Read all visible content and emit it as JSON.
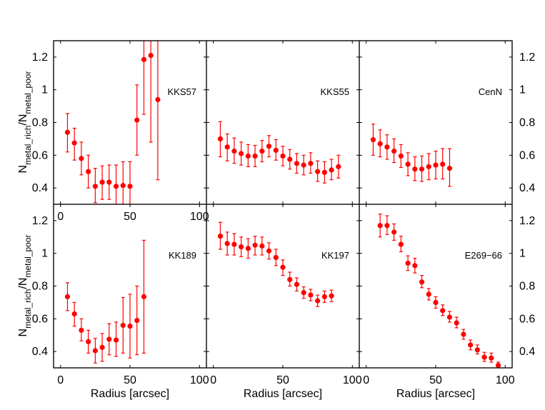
{
  "figure": {
    "colors": {
      "marker": "#ff0000",
      "frame": "#000000",
      "background": "#ffffff"
    },
    "xlabel": "Radius [arcsec]",
    "ylabel_main": "N",
    "ylabel_sub_rich": "metal_rich",
    "ylabel_slash": "/N",
    "ylabel_sub_poor": "metal_poor"
  },
  "chart_data": [
    {
      "type": "scatter",
      "title": "KKS57",
      "row": 0,
      "col": 0,
      "xlim": [
        -5,
        105
      ],
      "ylim": [
        0.3,
        1.3
      ],
      "xticks": [
        0,
        50,
        100
      ],
      "yticks": [
        0.4,
        0.6,
        0.8,
        1.0,
        1.2
      ],
      "xticklabels": [
        "0",
        "50",
        "100"
      ],
      "yticklabels": [
        "0.4",
        "0.6",
        "0.8",
        "1",
        "1.2"
      ],
      "points": [
        {
          "x": 5,
          "y": 0.74,
          "lo": 0.62,
          "hi": 0.855
        },
        {
          "x": 10,
          "y": 0.675,
          "lo": 0.57,
          "hi": 0.765
        },
        {
          "x": 15,
          "y": 0.58,
          "lo": 0.48,
          "hi": 0.68
        },
        {
          "x": 20,
          "y": 0.5,
          "lo": 0.4,
          "hi": 0.6
        },
        {
          "x": 25,
          "y": 0.41,
          "lo": 0.31,
          "hi": 0.52
        },
        {
          "x": 30,
          "y": 0.435,
          "lo": 0.33,
          "hi": 0.535
        },
        {
          "x": 35,
          "y": 0.435,
          "lo": 0.33,
          "hi": 0.54
        },
        {
          "x": 40,
          "y": 0.41,
          "lo": 0.3,
          "hi": 0.54
        },
        {
          "x": 45,
          "y": 0.415,
          "lo": 0.3,
          "hi": 0.56
        },
        {
          "x": 50,
          "y": 0.41,
          "lo": 0.3,
          "hi": 0.56
        },
        {
          "x": 55,
          "y": 0.815,
          "lo": 0.6,
          "hi": 1.03
        },
        {
          "x": 60,
          "y": 1.185,
          "lo": 0.85,
          "hi": 1.3
        },
        {
          "x": 65,
          "y": 1.21,
          "lo": 0.68,
          "hi": 1.3
        },
        {
          "x": 70,
          "y": 0.94,
          "lo": 0.45,
          "hi": 1.3
        }
      ]
    },
    {
      "type": "scatter",
      "title": "KKS55",
      "row": 0,
      "col": 1,
      "xlim": [
        -5,
        105
      ],
      "ylim": [
        0.3,
        1.3
      ],
      "xticks": [
        0,
        50,
        100
      ],
      "yticks": [
        0.4,
        0.6,
        0.8,
        1.0,
        1.2
      ],
      "xticklabels": [],
      "yticklabels": [],
      "points": [
        {
          "x": 5,
          "y": 0.7,
          "lo": 0.59,
          "hi": 0.805
        },
        {
          "x": 10,
          "y": 0.65,
          "lo": 0.565,
          "hi": 0.73
        },
        {
          "x": 15,
          "y": 0.625,
          "lo": 0.55,
          "hi": 0.705
        },
        {
          "x": 20,
          "y": 0.61,
          "lo": 0.54,
          "hi": 0.68
        },
        {
          "x": 25,
          "y": 0.595,
          "lo": 0.53,
          "hi": 0.665
        },
        {
          "x": 30,
          "y": 0.595,
          "lo": 0.53,
          "hi": 0.66
        },
        {
          "x": 35,
          "y": 0.625,
          "lo": 0.56,
          "hi": 0.69
        },
        {
          "x": 40,
          "y": 0.655,
          "lo": 0.59,
          "hi": 0.72
        },
        {
          "x": 45,
          "y": 0.63,
          "lo": 0.57,
          "hi": 0.695
        },
        {
          "x": 50,
          "y": 0.595,
          "lo": 0.535,
          "hi": 0.655
        },
        {
          "x": 55,
          "y": 0.575,
          "lo": 0.515,
          "hi": 0.635
        },
        {
          "x": 60,
          "y": 0.55,
          "lo": 0.49,
          "hi": 0.61
        },
        {
          "x": 65,
          "y": 0.54,
          "lo": 0.48,
          "hi": 0.6
        },
        {
          "x": 70,
          "y": 0.55,
          "lo": 0.49,
          "hi": 0.615
        },
        {
          "x": 75,
          "y": 0.5,
          "lo": 0.44,
          "hi": 0.565
        },
        {
          "x": 80,
          "y": 0.495,
          "lo": 0.43,
          "hi": 0.56
        },
        {
          "x": 85,
          "y": 0.51,
          "lo": 0.45,
          "hi": 0.575
        },
        {
          "x": 90,
          "y": 0.53,
          "lo": 0.46,
          "hi": 0.6
        }
      ]
    },
    {
      "type": "scatter",
      "title": "CenN",
      "row": 0,
      "col": 2,
      "xlim": [
        -5,
        105
      ],
      "ylim": [
        0.3,
        1.3
      ],
      "xticks": [
        0,
        50,
        100
      ],
      "yticks": [
        0.4,
        0.6,
        0.8,
        1.0,
        1.2
      ],
      "xticklabels": [],
      "yticklabels": [
        "0.4",
        "0.6",
        "0.8",
        "1",
        "1.2"
      ],
      "points": [
        {
          "x": 5,
          "y": 0.695,
          "lo": 0.6,
          "hi": 0.79
        },
        {
          "x": 10,
          "y": 0.67,
          "lo": 0.59,
          "hi": 0.755
        },
        {
          "x": 15,
          "y": 0.65,
          "lo": 0.575,
          "hi": 0.725
        },
        {
          "x": 20,
          "y": 0.625,
          "lo": 0.555,
          "hi": 0.7
        },
        {
          "x": 25,
          "y": 0.595,
          "lo": 0.525,
          "hi": 0.665
        },
        {
          "x": 30,
          "y": 0.545,
          "lo": 0.475,
          "hi": 0.615
        },
        {
          "x": 35,
          "y": 0.515,
          "lo": 0.445,
          "hi": 0.59
        },
        {
          "x": 40,
          "y": 0.515,
          "lo": 0.44,
          "hi": 0.595
        },
        {
          "x": 45,
          "y": 0.53,
          "lo": 0.45,
          "hi": 0.61
        },
        {
          "x": 50,
          "y": 0.54,
          "lo": 0.455,
          "hi": 0.625
        },
        {
          "x": 55,
          "y": 0.545,
          "lo": 0.455,
          "hi": 0.64
        },
        {
          "x": 60,
          "y": 0.52,
          "lo": 0.41,
          "hi": 0.64
        }
      ]
    },
    {
      "type": "scatter",
      "title": "KK189",
      "row": 1,
      "col": 0,
      "xlim": [
        -5,
        105
      ],
      "ylim": [
        0.3,
        1.3
      ],
      "xticks": [
        0,
        50,
        100
      ],
      "yticks": [
        0.4,
        0.6,
        0.8,
        1.0,
        1.2
      ],
      "xticklabels": [
        "0",
        "50",
        "100"
      ],
      "yticklabels": [
        "0.4",
        "0.6",
        "0.8",
        "1",
        "1.2"
      ],
      "points": [
        {
          "x": 5,
          "y": 0.735,
          "lo": 0.65,
          "hi": 0.82
        },
        {
          "x": 10,
          "y": 0.63,
          "lo": 0.555,
          "hi": 0.7
        },
        {
          "x": 15,
          "y": 0.53,
          "lo": 0.465,
          "hi": 0.6
        },
        {
          "x": 20,
          "y": 0.46,
          "lo": 0.39,
          "hi": 0.53
        },
        {
          "x": 25,
          "y": 0.405,
          "lo": 0.33,
          "hi": 0.48
        },
        {
          "x": 30,
          "y": 0.425,
          "lo": 0.34,
          "hi": 0.51
        },
        {
          "x": 35,
          "y": 0.475,
          "lo": 0.38,
          "hi": 0.57
        },
        {
          "x": 40,
          "y": 0.47,
          "lo": 0.37,
          "hi": 0.58
        },
        {
          "x": 45,
          "y": 0.56,
          "lo": 0.39,
          "hi": 0.73
        },
        {
          "x": 50,
          "y": 0.555,
          "lo": 0.36,
          "hi": 0.75
        },
        {
          "x": 55,
          "y": 0.59,
          "lo": 0.38,
          "hi": 0.8
        },
        {
          "x": 60,
          "y": 0.735,
          "lo": 0.39,
          "hi": 1.08
        }
      ]
    },
    {
      "type": "scatter",
      "title": "KK197",
      "row": 1,
      "col": 1,
      "xlim": [
        -5,
        105
      ],
      "ylim": [
        0.3,
        1.3
      ],
      "xticks": [
        0,
        50,
        100
      ],
      "yticks": [
        0.4,
        0.6,
        0.8,
        1.0,
        1.2
      ],
      "xticklabels": [
        "0",
        "50",
        "100"
      ],
      "yticklabels": [],
      "points": [
        {
          "x": 5,
          "y": 1.105,
          "lo": 1.025,
          "hi": 1.19
        },
        {
          "x": 10,
          "y": 1.06,
          "lo": 0.99,
          "hi": 1.13
        },
        {
          "x": 15,
          "y": 1.055,
          "lo": 0.99,
          "hi": 1.12
        },
        {
          "x": 20,
          "y": 1.04,
          "lo": 0.98,
          "hi": 1.1
        },
        {
          "x": 25,
          "y": 1.03,
          "lo": 0.97,
          "hi": 1.09
        },
        {
          "x": 30,
          "y": 1.05,
          "lo": 0.99,
          "hi": 1.105
        },
        {
          "x": 35,
          "y": 1.045,
          "lo": 0.99,
          "hi": 1.1
        },
        {
          "x": 40,
          "y": 1.015,
          "lo": 0.965,
          "hi": 1.065
        },
        {
          "x": 45,
          "y": 0.975,
          "lo": 0.925,
          "hi": 1.025
        },
        {
          "x": 50,
          "y": 0.915,
          "lo": 0.865,
          "hi": 0.96
        },
        {
          "x": 55,
          "y": 0.84,
          "lo": 0.8,
          "hi": 0.885
        },
        {
          "x": 60,
          "y": 0.81,
          "lo": 0.77,
          "hi": 0.85
        },
        {
          "x": 65,
          "y": 0.76,
          "lo": 0.725,
          "hi": 0.795
        },
        {
          "x": 70,
          "y": 0.745,
          "lo": 0.71,
          "hi": 0.78
        },
        {
          "x": 75,
          "y": 0.71,
          "lo": 0.675,
          "hi": 0.745
        },
        {
          "x": 80,
          "y": 0.735,
          "lo": 0.7,
          "hi": 0.77
        },
        {
          "x": 85,
          "y": 0.74,
          "lo": 0.705,
          "hi": 0.775
        }
      ]
    },
    {
      "type": "scatter",
      "title": "E269−66",
      "row": 1,
      "col": 2,
      "xlim": [
        -5,
        105
      ],
      "ylim": [
        0.3,
        1.3
      ],
      "xticks": [
        0,
        50,
        100
      ],
      "yticks": [
        0.4,
        0.6,
        0.8,
        1.0,
        1.2
      ],
      "xticklabels": [
        "0",
        "50",
        "100"
      ],
      "yticklabels": [
        "0.4",
        "0.6",
        "0.8",
        "1",
        "1.2"
      ],
      "points": [
        {
          "x": 10,
          "y": 1.17,
          "lo": 1.1,
          "hi": 1.24
        },
        {
          "x": 15,
          "y": 1.17,
          "lo": 1.115,
          "hi": 1.23
        },
        {
          "x": 20,
          "y": 1.13,
          "lo": 1.08,
          "hi": 1.18
        },
        {
          "x": 25,
          "y": 1.055,
          "lo": 1.01,
          "hi": 1.105
        },
        {
          "x": 30,
          "y": 0.94,
          "lo": 0.895,
          "hi": 0.985
        },
        {
          "x": 35,
          "y": 0.925,
          "lo": 0.88,
          "hi": 0.97
        },
        {
          "x": 40,
          "y": 0.825,
          "lo": 0.79,
          "hi": 0.865
        },
        {
          "x": 45,
          "y": 0.75,
          "lo": 0.715,
          "hi": 0.785
        },
        {
          "x": 50,
          "y": 0.7,
          "lo": 0.665,
          "hi": 0.735
        },
        {
          "x": 55,
          "y": 0.65,
          "lo": 0.62,
          "hi": 0.685
        },
        {
          "x": 60,
          "y": 0.61,
          "lo": 0.58,
          "hi": 0.645
        },
        {
          "x": 65,
          "y": 0.575,
          "lo": 0.545,
          "hi": 0.61
        },
        {
          "x": 70,
          "y": 0.505,
          "lo": 0.475,
          "hi": 0.535
        },
        {
          "x": 75,
          "y": 0.44,
          "lo": 0.41,
          "hi": 0.47
        },
        {
          "x": 80,
          "y": 0.41,
          "lo": 0.385,
          "hi": 0.44
        },
        {
          "x": 85,
          "y": 0.365,
          "lo": 0.34,
          "hi": 0.395
        },
        {
          "x": 90,
          "y": 0.36,
          "lo": 0.335,
          "hi": 0.39
        },
        {
          "x": 95,
          "y": 0.315,
          "lo": 0.3,
          "hi": 0.335
        }
      ]
    }
  ]
}
